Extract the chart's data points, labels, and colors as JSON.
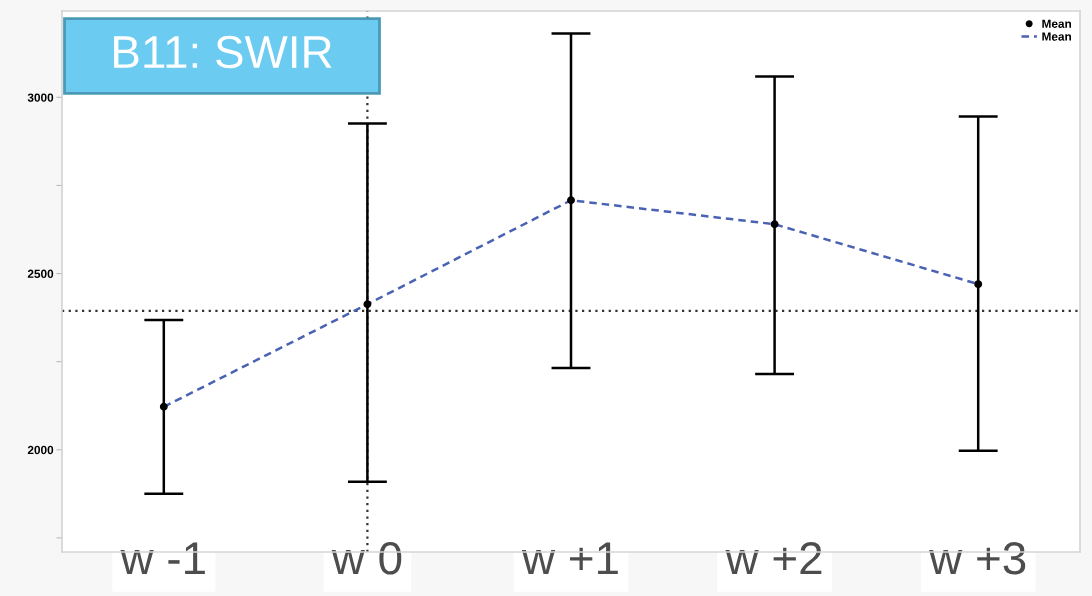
{
  "chart_data": {
    "type": "line",
    "title": "B11: SWIR",
    "categories": [
      "w -1",
      "w 0",
      "w +1",
      "w +2",
      "w +3"
    ],
    "series": [
      {
        "name": "Mean",
        "type": "scatter",
        "color": "#000000",
        "marker": "circle",
        "values": [
          2122,
          2413,
          2708,
          2640,
          2470
        ],
        "errors": [
          [
            1875,
            2368
          ],
          [
            1909,
            2926
          ],
          [
            2232,
            3181
          ],
          [
            2215,
            3059
          ],
          [
            1997,
            2946
          ]
        ]
      },
      {
        "name": "Mean",
        "color": "#4a62b3",
        "line_style": "dashed",
        "values": [
          2122,
          2413,
          2708,
          2640,
          2470
        ]
      }
    ],
    "ylim": [
      1710,
      3245
    ],
    "yticks": [
      {
        "value": 1750,
        "label": null
      },
      2000,
      {
        "value": 2250,
        "label": null
      },
      2500,
      {
        "value": 2750,
        "label": null
      },
      3000
    ],
    "ref_lines": [
      {
        "axis": "y",
        "value": 2394,
        "color": "#333333",
        "line_style": "dotted"
      },
      {
        "axis": "x",
        "value": "w 0",
        "color": "#333333",
        "line_style": "dotted"
      }
    ],
    "legend": "top right"
  }
}
